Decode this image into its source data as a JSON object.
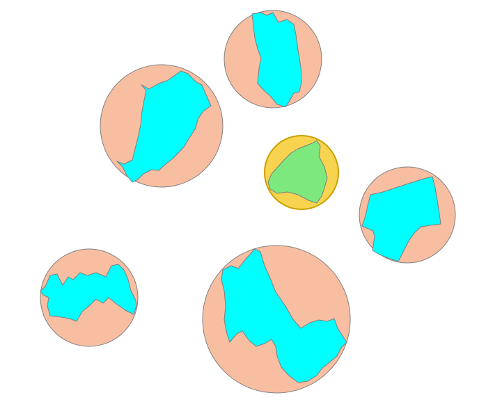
{
  "map": {
    "background_color": "#ffffff",
    "outline_color": "#7f7f7f",
    "colors": {
      "circle_fill": "#f8bea1",
      "shape_fill": "#00ffff",
      "selected_circle_fill": "#f7d34f",
      "selected_circle_stroke": "#c9a100",
      "selected_shape_fill": "#7de87d"
    },
    "regions": [
      {
        "id": "top-center",
        "selected": false
      },
      {
        "id": "upper-left",
        "selected": false
      },
      {
        "id": "center-highlighted",
        "selected": true
      },
      {
        "id": "right",
        "selected": false
      },
      {
        "id": "lower-left",
        "selected": false
      },
      {
        "id": "bottom-center",
        "selected": false
      }
    ]
  }
}
